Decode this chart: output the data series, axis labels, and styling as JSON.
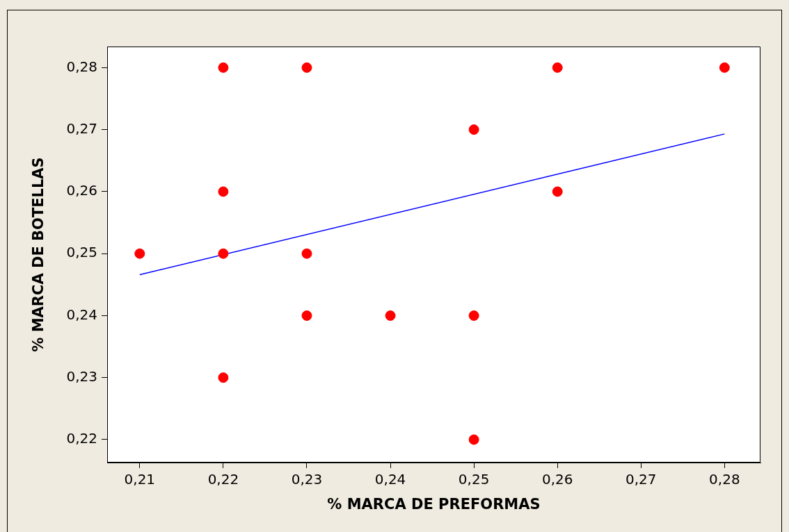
{
  "chart_data": {
    "type": "scatter",
    "xlabel": "% MARCA DE PREFORMAS",
    "ylabel": "% MARCA DE BOTELLAS",
    "xlim": [
      0.2061,
      0.2843
    ],
    "ylim": [
      0.2163,
      0.2834
    ],
    "xticks": [
      {
        "value": 0.21,
        "label": "0,21"
      },
      {
        "value": 0.22,
        "label": "0,22"
      },
      {
        "value": 0.23,
        "label": "0,23"
      },
      {
        "value": 0.24,
        "label": "0,24"
      },
      {
        "value": 0.25,
        "label": "0,25"
      },
      {
        "value": 0.26,
        "label": "0,26"
      },
      {
        "value": 0.27,
        "label": "0,27"
      },
      {
        "value": 0.28,
        "label": "0,28"
      }
    ],
    "yticks": [
      {
        "value": 0.22,
        "label": "0,22"
      },
      {
        "value": 0.23,
        "label": "0,23"
      },
      {
        "value": 0.24,
        "label": "0,24"
      },
      {
        "value": 0.25,
        "label": "0,25"
      },
      {
        "value": 0.26,
        "label": "0,26"
      },
      {
        "value": 0.27,
        "label": "0,27"
      },
      {
        "value": 0.28,
        "label": "0,28"
      }
    ],
    "grid": false,
    "series": [
      {
        "color": "#ff0000",
        "marker": "circle",
        "x": [
          0.21,
          0.22,
          0.22,
          0.22,
          0.22,
          0.23,
          0.23,
          0.23,
          0.24,
          0.25,
          0.25,
          0.25,
          0.26,
          0.26,
          0.28
        ],
        "values": [
          0.25,
          0.28,
          0.26,
          0.25,
          0.23,
          0.28,
          0.25,
          0.24,
          0.24,
          0.27,
          0.24,
          0.22,
          0.28,
          0.26,
          0.28
        ]
      },
      {
        "type": "line",
        "color": "#0000ff",
        "marker": "none",
        "line_style": "solid",
        "x": [
          0.21,
          0.28
        ],
        "values": [
          0.2466,
          0.2693
        ]
      }
    ]
  }
}
